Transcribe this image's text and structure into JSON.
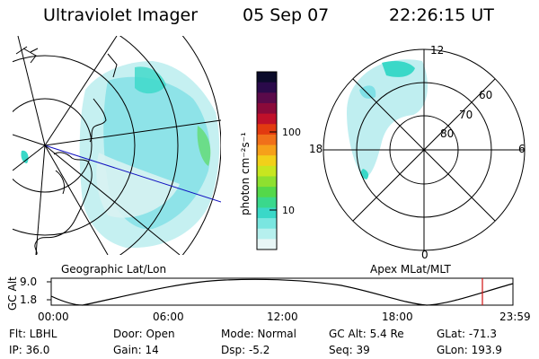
{
  "header": {
    "instrument": "Ultraviolet Imager",
    "date": "05 Sep 07",
    "time": "22:26:15 UT"
  },
  "colorbar": {
    "unit_label": "photon cm⁻²s⁻¹",
    "ticks": [
      "100",
      "10"
    ],
    "colors": [
      "#0b0b2a",
      "#2a0a4a",
      "#5a0a4a",
      "#8a0a3a",
      "#c0102a",
      "#e23a10",
      "#f0701a",
      "#f6a01a",
      "#f2d01a",
      "#c8e620",
      "#8ee030",
      "#54d84a",
      "#3ad88c",
      "#3ad8c8",
      "#7ae6e0",
      "#b6f0ee",
      "#e8f6f6"
    ]
  },
  "left_map": {
    "caption": "Geographic Lat/Lon"
  },
  "right_polar": {
    "caption": "Apex MLat/MLT",
    "mlt_labels": {
      "top": "12",
      "left": "18",
      "right": "6",
      "bottom": "0"
    },
    "lat_labels": [
      "60",
      "70",
      "80"
    ]
  },
  "alt_plot": {
    "ylabel": "GC Alt",
    "y_ticks": [
      "9.0",
      "1.8"
    ],
    "x_ticks": [
      "00:00",
      "06:00",
      "12:00",
      "18:00",
      "23:59"
    ],
    "marker_color": "#d01010"
  },
  "info": {
    "flt": "Flt: LBHL",
    "ip": "IP: 36.0",
    "door": "Door: Open",
    "gain": "Gain: 14",
    "mode": "Mode: Normal",
    "dsp": "Dsp:    -5.2",
    "gc_alt": "GC Alt: 5.4 Re",
    "seq": "Seq: 39",
    "glat": "GLat: -71.3",
    "glon": "GLon: 193.9"
  }
}
